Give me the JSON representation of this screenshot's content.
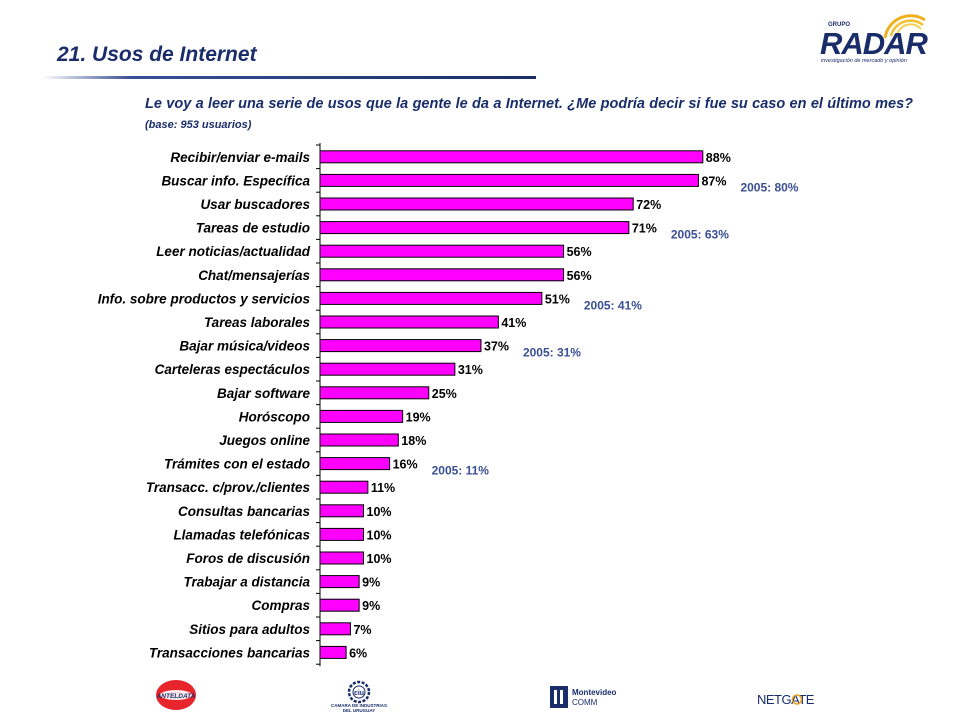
{
  "slide": {
    "title": "21. Usos de Internet",
    "question": "Le voy a leer una serie de usos que la gente le da a Internet. ¿Me podría decir si fue su caso en el último mes?",
    "base": "(base: 953 usuarios)"
  },
  "logos": {
    "radar_group": "GRUPO",
    "radar_word": "RADAR",
    "radar_tagline": "investigación de mercado y opinión",
    "ciu_text": "CAMARA DE INDUSTRIAS DEL URUGUAY",
    "ciu_mark": "ciu",
    "anteldata_text": "ANTELDATA",
    "montevideo_line1": "Montevideo",
    "montevideo_line2": "COMM",
    "netgate_text": "NETGATE"
  },
  "colors": {
    "bar_fill": "#ff00ff",
    "bar_stroke": "#000000",
    "title": "#1a2d6b",
    "note": "#3a4f95"
  },
  "chart_data": {
    "type": "bar",
    "orientation": "horizontal",
    "title": "",
    "xlabel": "",
    "ylabel": "",
    "xlim": [
      0,
      100
    ],
    "grid": false,
    "categories": [
      "Recibir/enviar e-mails",
      "Buscar info. Específica",
      "Usar buscadores",
      "Tareas de estudio",
      "Leer noticias/actualidad",
      "Chat/mensajerías",
      "Info. sobre productos y servicios",
      "Tareas laborales",
      "Bajar música/videos",
      "Carteleras espectáculos",
      "Bajar software",
      "Horóscopo",
      "Juegos online",
      "Trámites con el estado",
      "Transacc. c/prov./clientes",
      "Consultas bancarias",
      "Llamadas telefónicas",
      "Foros de discusión",
      "Trabajar a distancia",
      "Compras",
      "Sitios para adultos",
      "Transacciones bancarias"
    ],
    "values": [
      88,
      87,
      72,
      71,
      56,
      56,
      51,
      41,
      37,
      31,
      25,
      19,
      18,
      16,
      11,
      10,
      10,
      10,
      9,
      9,
      7,
      6
    ],
    "value_labels": [
      "88%",
      "87%",
      "72%",
      "71%",
      "56%",
      "56%",
      "51%",
      "41%",
      "37%",
      "31%",
      "25%",
      "19%",
      "18%",
      "16%",
      "11%",
      "10%",
      "10%",
      "10%",
      "9%",
      "9%",
      "7%",
      "6%"
    ],
    "annotations": [
      {
        "category_index": 1,
        "text": "2005:  80%"
      },
      {
        "category_index": 3,
        "text": "2005:  63%"
      },
      {
        "category_index": 6,
        "text": "2005:  41%"
      },
      {
        "category_index": 8,
        "text": "2005:  31%"
      },
      {
        "category_index": 13,
        "text": "2005:  11%"
      }
    ]
  }
}
